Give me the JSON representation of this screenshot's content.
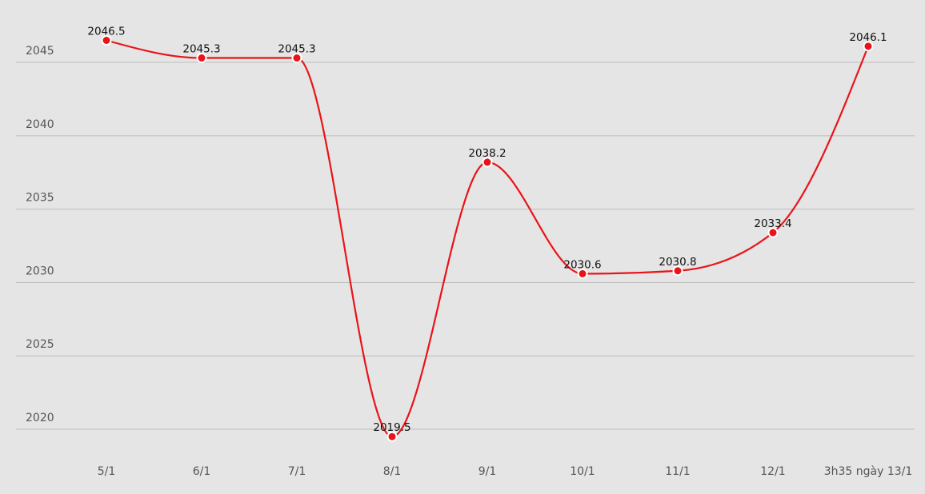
{
  "chart_data": {
    "type": "line",
    "categories": [
      "5/1",
      "6/1",
      "7/1",
      "8/1",
      "9/1",
      "10/1",
      "11/1",
      "12/1",
      "3h35 ngày 13/1"
    ],
    "values": [
      2046.5,
      2045.3,
      2045.3,
      2019.5,
      2038.2,
      2030.6,
      2030.8,
      2033.4,
      2046.1
    ],
    "color": "#e8141a",
    "ylim": [
      2019,
      2049
    ],
    "yticks": [
      2020,
      2025,
      2030,
      2035,
      2040,
      2045
    ],
    "grid": true
  }
}
